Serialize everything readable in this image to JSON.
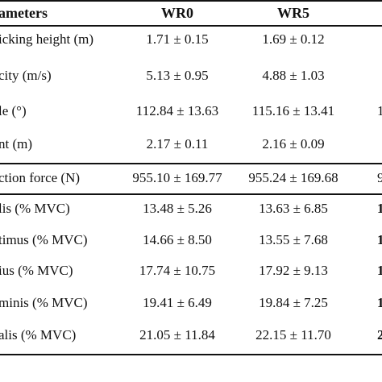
{
  "header": {
    "col0": "ameters",
    "col1": "WR0",
    "col2": "WR5"
  },
  "rows": [
    {
      "label": "icking height (m)",
      "wr0": "1.71 ± 0.15",
      "wr5": "1.69 ± 0.12",
      "extra": ""
    },
    {
      "label": "city (m/s)",
      "wr0": "5.13 ± 0.95",
      "wr5": "4.88 ± 1.03",
      "extra": ""
    },
    {
      "label": "le (°)",
      "wr0": "112.84 ± 13.63",
      "wr5": "115.16 ± 13.41",
      "extra": "1"
    },
    {
      "label": "nt (m)",
      "wr0": "2.17 ± 0.11",
      "wr5": "2.16 ± 0.09",
      "extra": ""
    },
    {
      "label": "ction force (N)",
      "wr0": "955.10 ± 169.77",
      "wr5": "955.24 ± 169.68",
      "extra": "9"
    },
    {
      "label": "lis (% MVC)",
      "wr0": "13.48 ± 5.26",
      "wr5": "13.63 ± 6.85",
      "extra": "1"
    },
    {
      "label": "timus (% MVC)",
      "wr0": "14.66 ± 8.50",
      "wr5": "13.55 ± 7.68",
      "extra": "1"
    },
    {
      "label": "ius (% MVC)",
      "wr0": "17.74 ± 10.75",
      "wr5": "17.92 ± 9.13",
      "extra": "1"
    },
    {
      "label": "minis (% MVC)",
      "wr0": "19.41 ± 6.49",
      "wr5": "19.84 ± 7.25",
      "extra": "1"
    },
    {
      "label": "alis (% MVC)",
      "wr0": "21.05 ± 11.84",
      "wr5": "22.15 ± 11.70",
      "extra": "2"
    }
  ]
}
